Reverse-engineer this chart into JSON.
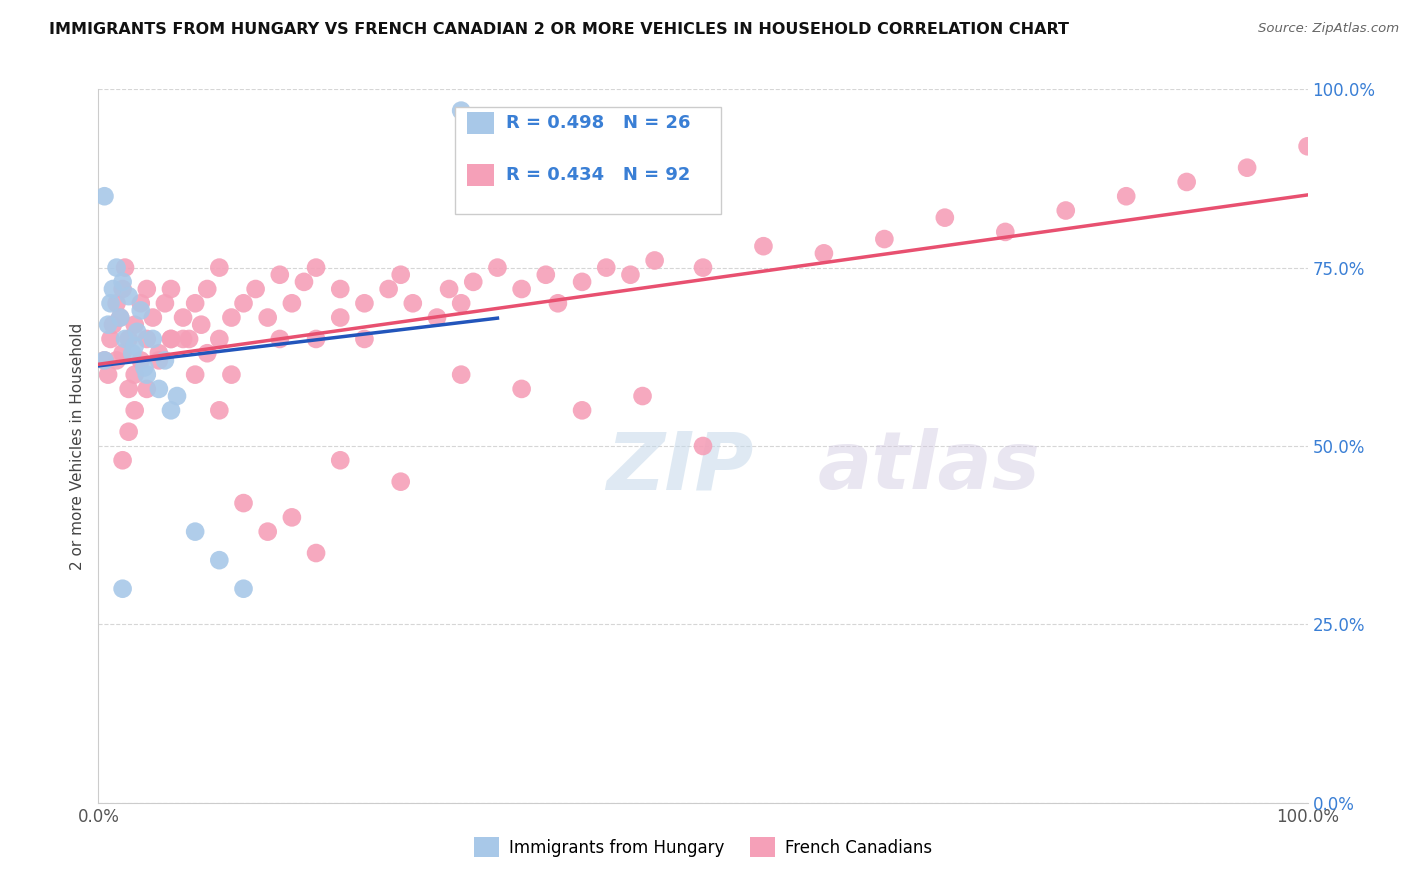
{
  "title": "IMMIGRANTS FROM HUNGARY VS FRENCH CANADIAN 2 OR MORE VEHICLES IN HOUSEHOLD CORRELATION CHART",
  "source": "Source: ZipAtlas.com",
  "ylabel": "2 or more Vehicles in Household",
  "ytick_labels": [
    "0.0%",
    "25.0%",
    "50.0%",
    "75.0%",
    "100.0%"
  ],
  "ytick_values": [
    0,
    25,
    50,
    75,
    100
  ],
  "xlim": [
    0,
    100
  ],
  "ylim": [
    0,
    100
  ],
  "blue_R": 0.498,
  "blue_N": 26,
  "pink_R": 0.434,
  "pink_N": 92,
  "legend_label_blue": "Immigrants from Hungary",
  "legend_label_pink": "French Canadians",
  "blue_color": "#a8c8e8",
  "blue_line_color": "#2255bb",
  "pink_color": "#f5a0b8",
  "pink_line_color": "#e85070",
  "legend_R_color": "#3a7fd5",
  "background_color": "#ffffff",
  "blue_x": [
    0.5,
    0.8,
    1.0,
    1.2,
    1.5,
    1.8,
    2.0,
    2.2,
    2.5,
    2.8,
    3.0,
    3.2,
    3.5,
    3.8,
    4.0,
    4.5,
    5.0,
    5.5,
    6.0,
    6.5,
    8.0,
    10.0,
    12.0,
    30.0,
    2.0,
    0.5
  ],
  "blue_y": [
    62,
    67,
    70,
    72,
    75,
    68,
    73,
    65,
    71,
    63,
    64,
    66,
    69,
    61,
    60,
    65,
    58,
    62,
    55,
    57,
    38,
    34,
    30,
    97,
    30,
    85
  ],
  "pink_x": [
    0.5,
    0.8,
    1.0,
    1.2,
    1.5,
    1.5,
    1.8,
    2.0,
    2.0,
    2.2,
    2.5,
    2.5,
    3.0,
    3.0,
    3.5,
    3.5,
    4.0,
    4.0,
    4.5,
    5.0,
    5.5,
    6.0,
    6.0,
    7.0,
    7.5,
    8.0,
    8.5,
    9.0,
    10.0,
    10.0,
    11.0,
    12.0,
    13.0,
    14.0,
    15.0,
    15.0,
    16.0,
    17.0,
    18.0,
    18.0,
    20.0,
    20.0,
    22.0,
    22.0,
    24.0,
    25.0,
    26.0,
    28.0,
    29.0,
    30.0,
    31.0,
    33.0,
    35.0,
    37.0,
    38.0,
    40.0,
    42.0,
    44.0,
    46.0,
    50.0,
    55.0,
    60.0,
    65.0,
    70.0,
    75.0,
    80.0,
    85.0,
    90.0,
    95.0,
    100.0,
    30.0,
    35.0,
    40.0,
    45.0,
    50.0,
    20.0,
    25.0,
    10.0,
    12.0,
    14.0,
    16.0,
    18.0,
    8.0,
    6.0,
    4.0,
    3.0,
    2.5,
    2.0,
    5.0,
    7.0,
    9.0,
    11.0
  ],
  "pink_y": [
    62,
    60,
    65,
    67,
    70,
    62,
    68,
    72,
    63,
    75,
    65,
    58,
    60,
    67,
    70,
    62,
    65,
    72,
    68,
    63,
    70,
    65,
    72,
    68,
    65,
    70,
    67,
    72,
    65,
    75,
    68,
    70,
    72,
    68,
    74,
    65,
    70,
    73,
    65,
    75,
    68,
    72,
    70,
    65,
    72,
    74,
    70,
    68,
    72,
    70,
    73,
    75,
    72,
    74,
    70,
    73,
    75,
    74,
    76,
    75,
    78,
    77,
    79,
    82,
    80,
    83,
    85,
    87,
    89,
    92,
    60,
    58,
    55,
    57,
    50,
    48,
    45,
    55,
    42,
    38,
    40,
    35,
    60,
    65,
    58,
    55,
    52,
    48,
    62,
    65,
    63,
    60
  ]
}
